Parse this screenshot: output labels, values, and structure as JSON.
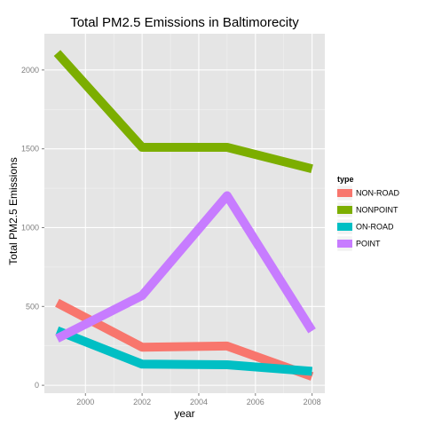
{
  "chart_data": {
    "type": "line",
    "title": "Total PM2.5 Emissions in Baltimorecity",
    "xlabel": "year",
    "ylabel": "Total PM2.5 Emissions",
    "x": [
      1999,
      2002,
      2005,
      2008
    ],
    "xlim": [
      1998.55,
      2008.45
    ],
    "ylim": [
      -50,
      2230
    ],
    "xticks": [
      2000,
      2002,
      2004,
      2006,
      2008
    ],
    "yticks": [
      0,
      500,
      1000,
      1500,
      2000
    ],
    "grid": true,
    "legend": {
      "title": "type",
      "position": "right"
    },
    "series": [
      {
        "name": "NON-ROAD",
        "color": "#F8766D",
        "values": [
          522.9,
          241.5,
          248.9,
          55.8
        ]
      },
      {
        "name": "NONPOINT",
        "color": "#7CAE00",
        "values": [
          2107.6,
          1509.5,
          1509.5,
          1373.2
        ]
      },
      {
        "name": "ON-ROAD",
        "color": "#00BFC4",
        "values": [
          346.8,
          134.3,
          130.4,
          88.3
        ]
      },
      {
        "name": "POINT",
        "color": "#C77CFF",
        "values": [
          296.8,
          569.3,
          1202.5,
          344.98
        ]
      }
    ]
  }
}
